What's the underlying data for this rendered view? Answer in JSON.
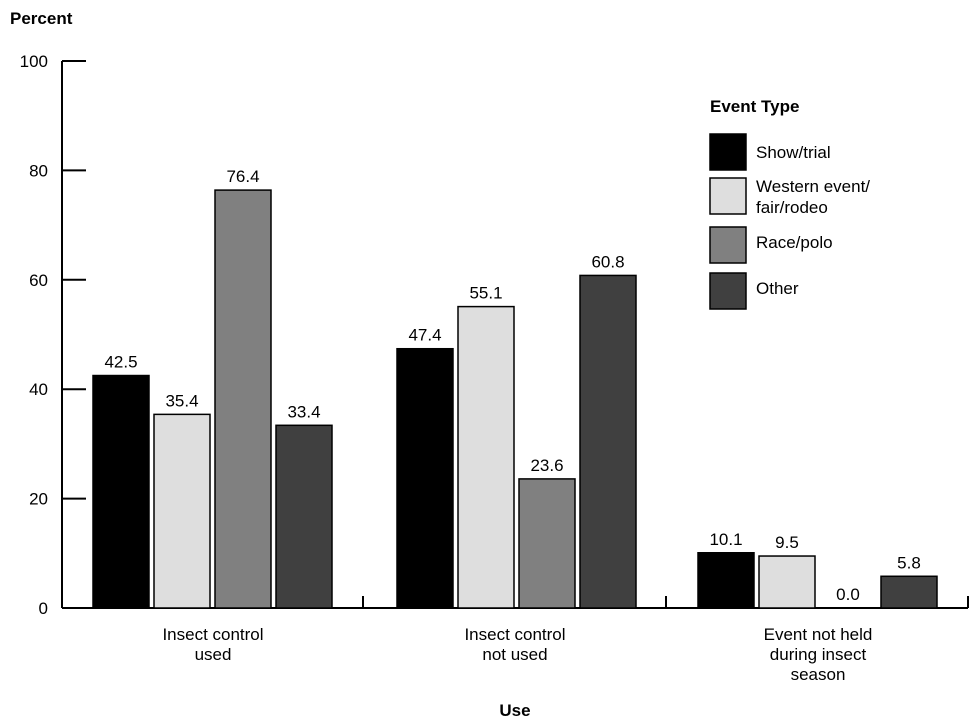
{
  "chart_data": {
    "type": "bar",
    "ylabel": "Percent",
    "xlabel": "Use",
    "ylim": [
      0,
      100
    ],
    "yticks": [
      0,
      20,
      40,
      60,
      80,
      100
    ],
    "grid": false,
    "legend_title": "Event Type",
    "legend_position": "top-right",
    "categories": [
      [
        "Insect control",
        "used"
      ],
      [
        "Insect control",
        "not used"
      ],
      [
        "Event not held",
        "during insect",
        "season"
      ]
    ],
    "series": [
      {
        "name": [
          "Show/trial"
        ],
        "color": "#000000",
        "values": [
          42.5,
          47.4,
          10.1
        ],
        "labels": [
          "42.5",
          "47.4",
          "10.1"
        ]
      },
      {
        "name": [
          "Western event/",
          "fair/rodeo"
        ],
        "color": "#dedede",
        "values": [
          35.4,
          55.1,
          9.5
        ],
        "labels": [
          "35.4",
          "55.1",
          "9.5"
        ]
      },
      {
        "name": [
          "Race/polo"
        ],
        "color": "#808080",
        "values": [
          76.4,
          23.6,
          0.0
        ],
        "labels": [
          "76.4",
          "23.6",
          "0.0"
        ]
      },
      {
        "name": [
          "Other"
        ],
        "color": "#404040",
        "values": [
          33.4,
          60.8,
          5.8
        ],
        "labels": [
          "33.4",
          "60.8",
          "5.8"
        ]
      }
    ]
  }
}
